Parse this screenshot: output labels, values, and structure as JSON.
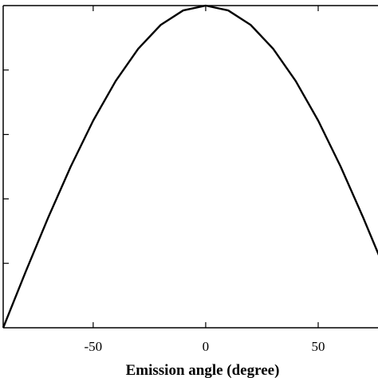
{
  "chart_data": {
    "type": "line",
    "title": "",
    "xlabel": "Emission angle (degree)",
    "ylabel": "",
    "xlim": [
      -90,
      78
    ],
    "ylim": [
      0,
      1
    ],
    "x_ticks": [
      -50,
      0,
      50
    ],
    "x_tick_labels": [
      "-50",
      "0",
      "50"
    ],
    "y_ticks": [
      0.2,
      0.4,
      0.6,
      0.8
    ],
    "grid": false,
    "series": [
      {
        "color": "#000000",
        "x": [
          -90,
          -80,
          -70,
          -60,
          -50,
          -40,
          -30,
          -20,
          -10,
          0,
          10,
          20,
          30,
          40,
          50,
          60,
          70,
          78
        ],
        "y": [
          0.0,
          0.174,
          0.342,
          0.5,
          0.643,
          0.766,
          0.866,
          0.94,
          0.985,
          1.0,
          0.985,
          0.94,
          0.866,
          0.766,
          0.643,
          0.5,
          0.342,
          0.208
        ]
      }
    ]
  }
}
